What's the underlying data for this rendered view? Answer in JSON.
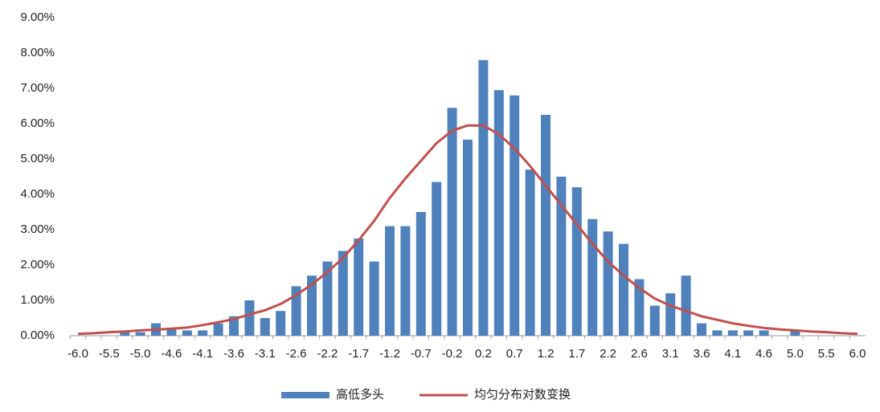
{
  "chart_data": {
    "type": "bar",
    "categories": [
      "-6.0",
      null,
      "-5.5",
      null,
      "-5.0",
      null,
      "-4.6",
      null,
      "-4.1",
      null,
      "-3.6",
      null,
      "-3.1",
      null,
      "-2.6",
      null,
      "-2.2",
      null,
      "-1.7",
      null,
      "-1.2",
      null,
      "-0.7",
      null,
      "-0.2",
      null,
      "0.2",
      null,
      "0.7",
      null,
      "1.2",
      null,
      "1.7",
      null,
      "2.2",
      null,
      "2.6",
      null,
      "3.1",
      null,
      "3.6",
      null,
      "4.1",
      null,
      "4.6",
      null,
      "5.0",
      null,
      "5.5",
      null,
      "6.0"
    ],
    "series": [
      {
        "name": "高低多头",
        "type": "bar",
        "color": "#4f81bd",
        "values": [
          0,
          0,
          0,
          0.1,
          0.1,
          0.35,
          0.2,
          0.15,
          0.15,
          0.35,
          0.55,
          1.0,
          0.5,
          0.7,
          1.4,
          1.7,
          2.1,
          2.4,
          2.75,
          2.1,
          3.1,
          3.1,
          3.5,
          4.35,
          6.45,
          5.55,
          7.8,
          6.95,
          6.8,
          4.7,
          6.25,
          4.5,
          4.2,
          3.3,
          2.95,
          2.6,
          1.6,
          0.85,
          1.2,
          1.7,
          0.35,
          0.15,
          0.15,
          0.15,
          0.15,
          0,
          0.15,
          0,
          0,
          0,
          0
        ]
      },
      {
        "name": "均匀分布对数变换",
        "type": "line",
        "color": "#c0504d",
        "values": [
          0.05,
          0.07,
          0.1,
          0.12,
          0.15,
          0.17,
          0.2,
          0.23,
          0.3,
          0.38,
          0.47,
          0.6,
          0.72,
          0.9,
          1.15,
          1.45,
          1.8,
          2.2,
          2.7,
          3.25,
          3.9,
          4.45,
          4.95,
          5.45,
          5.8,
          5.95,
          5.95,
          5.7,
          5.3,
          4.8,
          4.25,
          3.7,
          3.15,
          2.6,
          2.1,
          1.7,
          1.35,
          1.05,
          0.85,
          0.7,
          0.55,
          0.45,
          0.35,
          0.28,
          0.22,
          0.18,
          0.15,
          0.12,
          0.1,
          0.07,
          0.05
        ]
      }
    ],
    "ylim": [
      0,
      9
    ],
    "yticks": [
      {
        "value": 0,
        "label": "0.00%"
      },
      {
        "value": 1,
        "label": "1.00%"
      },
      {
        "value": 2,
        "label": "2.00%"
      },
      {
        "value": 3,
        "label": "3.00%"
      },
      {
        "value": 4,
        "label": "4.00%"
      },
      {
        "value": 5,
        "label": "5.00%"
      },
      {
        "value": 6,
        "label": "6.00%"
      },
      {
        "value": 7,
        "label": "7.00%"
      },
      {
        "value": 8,
        "label": "8.00%"
      },
      {
        "value": 9,
        "label": "9.00%"
      }
    ],
    "grid": false,
    "legend": "bottom"
  }
}
